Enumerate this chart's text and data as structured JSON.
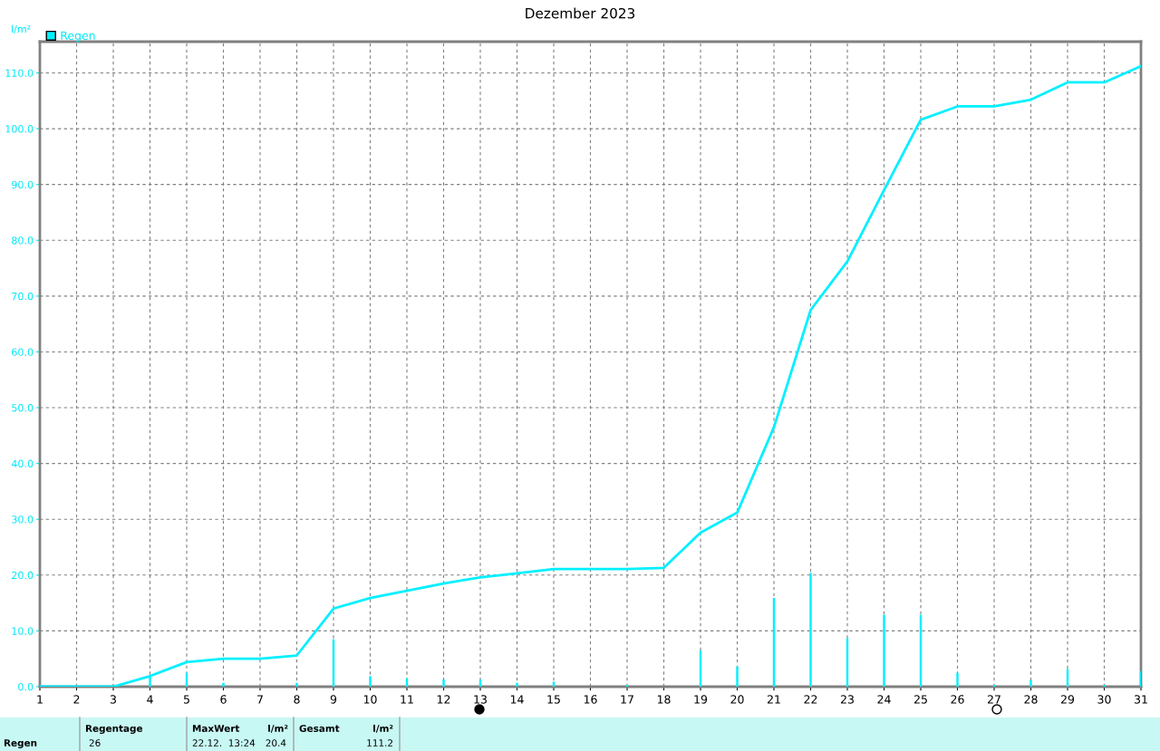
{
  "chart_data": {
    "type": "bar",
    "title": "Dezember 2023",
    "ylabel": "l/m²",
    "x": [
      1,
      2,
      3,
      4,
      5,
      6,
      7,
      8,
      9,
      10,
      11,
      12,
      13,
      14,
      15,
      16,
      17,
      18,
      19,
      20,
      21,
      22,
      23,
      24,
      25,
      26,
      27,
      28,
      29,
      30,
      31
    ],
    "series": [
      {
        "name": "Regen",
        "color": "#00f0ff",
        "values": [
          null,
          null,
          null,
          2.0,
          2.5,
          0.7,
          null,
          0.7,
          8.5,
          1.9,
          1.5,
          1.3,
          1.3,
          0.7,
          0.9,
          null,
          0.3,
          null,
          6.5,
          3.6,
          15.9,
          20.4,
          8.7,
          12.9,
          12.9,
          2.5,
          0.3,
          1.2,
          3.2,
          0.3,
          2.8
        ]
      },
      {
        "type": "line",
        "color": "#00f0ff",
        "values": [
          0,
          0,
          0,
          1.9,
          4.4,
          5.0,
          5.0,
          5.6,
          14.0,
          15.9,
          17.2,
          18.5,
          19.6,
          20.3,
          21.1,
          21.1,
          21.1,
          21.3,
          27.6,
          31.2,
          46.5,
          67.5,
          76.2,
          89.0,
          101.6,
          104.0,
          104.0,
          105.2,
          108.3,
          108.3,
          111.2
        ]
      }
    ],
    "xlim": [
      1,
      31
    ],
    "xticks": [
      1,
      2,
      3,
      4,
      5,
      6,
      7,
      8,
      9,
      10,
      11,
      12,
      13,
      14,
      15,
      16,
      17,
      18,
      19,
      20,
      21,
      22,
      23,
      24,
      25,
      26,
      27,
      28,
      29,
      30,
      31
    ],
    "ylim": [
      0,
      115.6
    ],
    "yticks": [
      {
        "value": 0,
        "label": "0.0"
      },
      {
        "value": 10,
        "label": "10.0"
      },
      {
        "value": 20,
        "label": "20.0"
      },
      {
        "value": 30,
        "label": "30.0"
      },
      {
        "value": 40,
        "label": "40.0"
      },
      {
        "value": 50,
        "label": "50.0"
      },
      {
        "value": 60,
        "label": "60.0"
      },
      {
        "value": 70,
        "label": "70.0"
      },
      {
        "value": 80,
        "label": "80.0"
      },
      {
        "value": 90,
        "label": "90.0"
      },
      {
        "value": 100,
        "label": "100.0"
      },
      {
        "value": 110,
        "label": "110.0"
      }
    ],
    "grid": true,
    "legend": "top left",
    "annotations": [
      "Regen",
      "Regentage",
      "26",
      "MaxWert",
      "l/m²",
      "22.12.  13:24",
      "20.4",
      "Gesamt",
      "l/m²",
      "111.2"
    ]
  }
}
